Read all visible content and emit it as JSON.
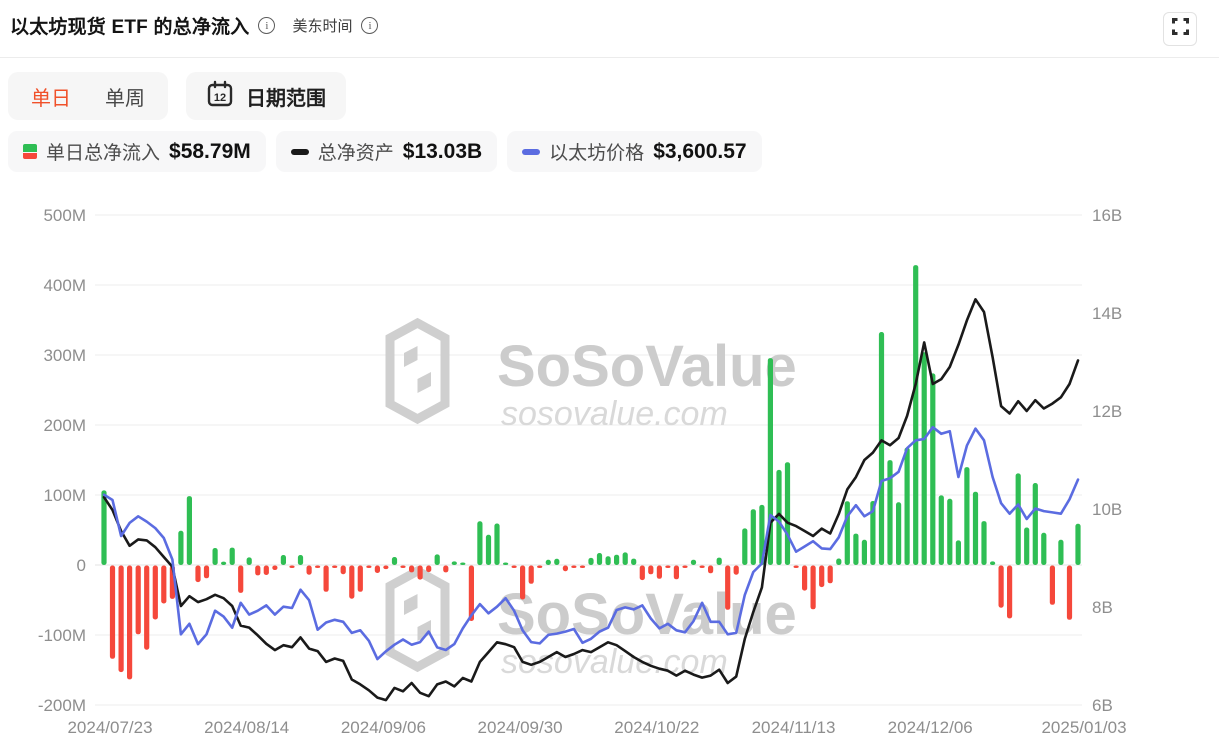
{
  "header": {
    "title": "以太坊现货 ETF 的总净流入",
    "timezone_label": "美东时间"
  },
  "toolbar": {
    "tabs": [
      {
        "label": "单日",
        "active": true
      },
      {
        "label": "单周",
        "active": false
      }
    ],
    "date_range_label": "日期范围",
    "calendar_icon_day": "12"
  },
  "legend": [
    {
      "label": "单日总净流入",
      "value": "$58.79M",
      "icon": "green-red-bar-icon"
    },
    {
      "label": "总净资产",
      "value": "$13.03B",
      "icon": "black-dash-icon",
      "color": "#1a1a1a"
    },
    {
      "label": "以太坊价格",
      "value": "$3,600.57",
      "icon": "blue-dash-icon",
      "color": "#5b6ce1"
    }
  ],
  "watermark": {
    "brand": "SoSoValue",
    "domain": "sosovalue.com"
  },
  "colors": {
    "inflow_positive": "#2fbe54",
    "inflow_negative": "#f5483b",
    "net_assets_line": "#1a1a1a",
    "price_line": "#5b6ce1",
    "grid": "#ededed",
    "zero_line": "#e3e3e3",
    "axis_text": "#8e8e8e",
    "tab_active": "#f0512a",
    "watermark_text": "#cccccc",
    "watermark_sub": "#d9d9d9"
  },
  "chart_data": {
    "type": "mixed-bar-line",
    "title": "以太坊现货 ETF 的总净流入",
    "left_axis": {
      "unit": "USD (M)",
      "ticks": [
        "500M",
        "400M",
        "300M",
        "200M",
        "100M",
        "0",
        "-100M",
        "-200M"
      ],
      "values": [
        500,
        400,
        300,
        200,
        100,
        0,
        -100,
        -200
      ],
      "ylim": [
        -200,
        500
      ]
    },
    "right_axis": {
      "unit": "USD (B)",
      "ticks": [
        "16B",
        "14B",
        "12B",
        "10B",
        "8B",
        "6B"
      ],
      "values": [
        16,
        14,
        12,
        10,
        8,
        6
      ],
      "ylim": [
        6,
        16
      ]
    },
    "price_hidden_scale": {
      "min": 1880,
      "max": 5620
    },
    "x_tick_labels": [
      "2024/07/23",
      "2024/08/14",
      "2024/09/06",
      "2024/09/30",
      "2024/10/22",
      "2024/11/13",
      "2024/12/06",
      "2025/01/03"
    ],
    "x_tick_indices": [
      0,
      16,
      32,
      48,
      64,
      80,
      96,
      114
    ],
    "grid": true,
    "categories": [
      "2024/07/23",
      "2024/07/24",
      "2024/07/25",
      "2024/07/26",
      "2024/07/29",
      "2024/07/30",
      "2024/07/31",
      "2024/08/01",
      "2024/08/02",
      "2024/08/05",
      "2024/08/06",
      "2024/08/07",
      "2024/08/08",
      "2024/08/09",
      "2024/08/12",
      "2024/08/13",
      "2024/08/14",
      "2024/08/15",
      "2024/08/16",
      "2024/08/19",
      "2024/08/20",
      "2024/08/21",
      "2024/08/22",
      "2024/08/23",
      "2024/08/26",
      "2024/08/27",
      "2024/08/28",
      "2024/08/29",
      "2024/08/30",
      "2024/09/03",
      "2024/09/04",
      "2024/09/05",
      "2024/09/06",
      "2024/09/09",
      "2024/09/10",
      "2024/09/11",
      "2024/09/12",
      "2024/09/13",
      "2024/09/16",
      "2024/09/17",
      "2024/09/18",
      "2024/09/19",
      "2024/09/20",
      "2024/09/23",
      "2024/09/24",
      "2024/09/25",
      "2024/09/26",
      "2024/09/27",
      "2024/09/30",
      "2024/10/01",
      "2024/10/02",
      "2024/10/03",
      "2024/10/04",
      "2024/10/07",
      "2024/10/08",
      "2024/10/09",
      "2024/10/10",
      "2024/10/11",
      "2024/10/14",
      "2024/10/15",
      "2024/10/16",
      "2024/10/17",
      "2024/10/18",
      "2024/10/21",
      "2024/10/22",
      "2024/10/23",
      "2024/10/24",
      "2024/10/25",
      "2024/10/28",
      "2024/10/29",
      "2024/10/30",
      "2024/10/31",
      "2024/11/01",
      "2024/11/04",
      "2024/11/05",
      "2024/11/06",
      "2024/11/07",
      "2024/11/08",
      "2024/11/11",
      "2024/11/12",
      "2024/11/13",
      "2024/11/14",
      "2024/11/15",
      "2024/11/18",
      "2024/11/19",
      "2024/11/20",
      "2024/11/21",
      "2024/11/22",
      "2024/11/25",
      "2024/11/26",
      "2024/11/27",
      "2024/11/29",
      "2024/12/02",
      "2024/12/03",
      "2024/12/04",
      "2024/12/05",
      "2024/12/06",
      "2024/12/09",
      "2024/12/10",
      "2024/12/11",
      "2024/12/12",
      "2024/12/13",
      "2024/12/16",
      "2024/12/17",
      "2024/12/18",
      "2024/12/19",
      "2024/12/20",
      "2024/12/23",
      "2024/12/24",
      "2024/12/26",
      "2024/12/27",
      "2024/12/30",
      "2024/12/31",
      "2025/01/02",
      "2025/01/03"
    ],
    "series": [
      {
        "name": "单日总净流入",
        "type": "bar",
        "unit": "$M",
        "axis": "left",
        "values": [
          106.6,
          -133.3,
          -152.3,
          -162.7,
          -98.3,
          -120.3,
          -77.2,
          -54.3,
          -47.7,
          48.8,
          98.4,
          -23.7,
          -18.3,
          24.3,
          4.9,
          24.8,
          -39.2,
          10.8,
          -14.2,
          -13.5,
          -6.5,
          14.3,
          -0.8,
          14.3,
          -13.2,
          -3.4,
          -37.5,
          -1.7,
          -12.4,
          -47.4,
          -37.5,
          -0.9,
          -10.7,
          -5.2,
          11.4,
          -0.5,
          -9.8,
          -20.1,
          -9.4,
          15.1,
          -9.8,
          5.2,
          2.9,
          -79.3,
          62.5,
          43.2,
          59.3,
          2.9,
          -0.8,
          -48.6,
          -26.2,
          -3.2,
          7.4,
          8.9,
          -8.2,
          -0.5,
          -0.1,
          10.1,
          17.1,
          12.5,
          14.7,
          18.0,
          9.2,
          -20.8,
          -12.5,
          -19.0,
          -0.5,
          -19.7,
          -1.1,
          7.6,
          -2.1,
          -11.1,
          10.5,
          -63.3,
          -13.1,
          52.3,
          79.7,
          85.8,
          295.5,
          135.9,
          146.9,
          -3.2,
          -35.9,
          -62.5,
          -30.9,
          -25.4,
          9.3,
          91.2,
          44.9,
          36.0,
          91.4,
          332.9,
          149.8,
          89.6,
          167.7,
          428.5,
          303.9,
          273.7,
          99.5,
          94.6,
          35.2,
          139.9,
          104.7,
          62.7,
          5.1,
          -60.3,
          -75.6,
          130.8,
          53.6,
          117.2,
          46.0,
          -56.1,
          36.0,
          -77.5,
          58.79
        ]
      },
      {
        "name": "总净资产",
        "type": "line",
        "unit": "$B",
        "axis": "right",
        "values": [
          10.24,
          9.98,
          9.55,
          9.25,
          9.38,
          9.36,
          9.22,
          9.02,
          8.82,
          8.02,
          8.22,
          8.1,
          8.16,
          8.25,
          8.18,
          8.02,
          7.62,
          7.58,
          7.42,
          7.25,
          7.12,
          7.22,
          7.18,
          7.38,
          7.15,
          7.1,
          6.88,
          6.95,
          6.9,
          6.52,
          6.42,
          6.3,
          6.15,
          6.1,
          6.35,
          6.28,
          6.45,
          6.25,
          6.18,
          6.42,
          6.48,
          6.38,
          6.55,
          6.48,
          6.88,
          7.08,
          7.28,
          7.24,
          7.18,
          6.88,
          6.82,
          6.88,
          6.98,
          7.08,
          6.98,
          7.04,
          7.12,
          7.08,
          7.18,
          7.28,
          7.22,
          7.1,
          6.98,
          6.88,
          6.8,
          6.74,
          6.7,
          6.6,
          6.7,
          6.62,
          6.56,
          6.6,
          6.72,
          6.45,
          6.58,
          7.35,
          7.9,
          8.4,
          9.72,
          9.9,
          9.72,
          9.65,
          9.55,
          9.45,
          9.6,
          9.5,
          9.9,
          10.4,
          10.65,
          11.0,
          11.15,
          11.4,
          11.3,
          11.45,
          11.9,
          12.55,
          13.4,
          12.55,
          12.65,
          12.9,
          13.35,
          13.85,
          14.28,
          14.02,
          13.1,
          12.1,
          11.95,
          12.2,
          12.0,
          12.22,
          12.05,
          12.15,
          12.28,
          12.55,
          13.03
        ]
      },
      {
        "name": "以太坊价格",
        "type": "line",
        "unit": "$",
        "axis": "price",
        "values": [
          3485,
          3445,
          3170,
          3270,
          3320,
          3280,
          3230,
          3155,
          2990,
          2420,
          2500,
          2345,
          2420,
          2600,
          2555,
          2470,
          2660,
          2570,
          2600,
          2640,
          2570,
          2630,
          2620,
          2760,
          2680,
          2455,
          2510,
          2530,
          2515,
          2430,
          2450,
          2370,
          2230,
          2290,
          2340,
          2380,
          2340,
          2360,
          2440,
          2320,
          2300,
          2345,
          2465,
          2565,
          2650,
          2580,
          2630,
          2695,
          2600,
          2450,
          2360,
          2350,
          2415,
          2425,
          2440,
          2460,
          2355,
          2385,
          2440,
          2470,
          2605,
          2625,
          2610,
          2640,
          2540,
          2465,
          2500,
          2450,
          2435,
          2520,
          2660,
          2515,
          2515,
          2420,
          2430,
          2720,
          2895,
          2960,
          3330,
          3280,
          3180,
          3050,
          3090,
          3130,
          3075,
          3070,
          3160,
          3320,
          3405,
          3320,
          3360,
          3590,
          3610,
          3660,
          3840,
          3900,
          3910,
          4000,
          3950,
          3970,
          3620,
          3860,
          3990,
          3900,
          3620,
          3420,
          3340,
          3410,
          3300,
          3380,
          3360,
          3350,
          3340,
          3450,
          3600.57
        ]
      }
    ]
  }
}
